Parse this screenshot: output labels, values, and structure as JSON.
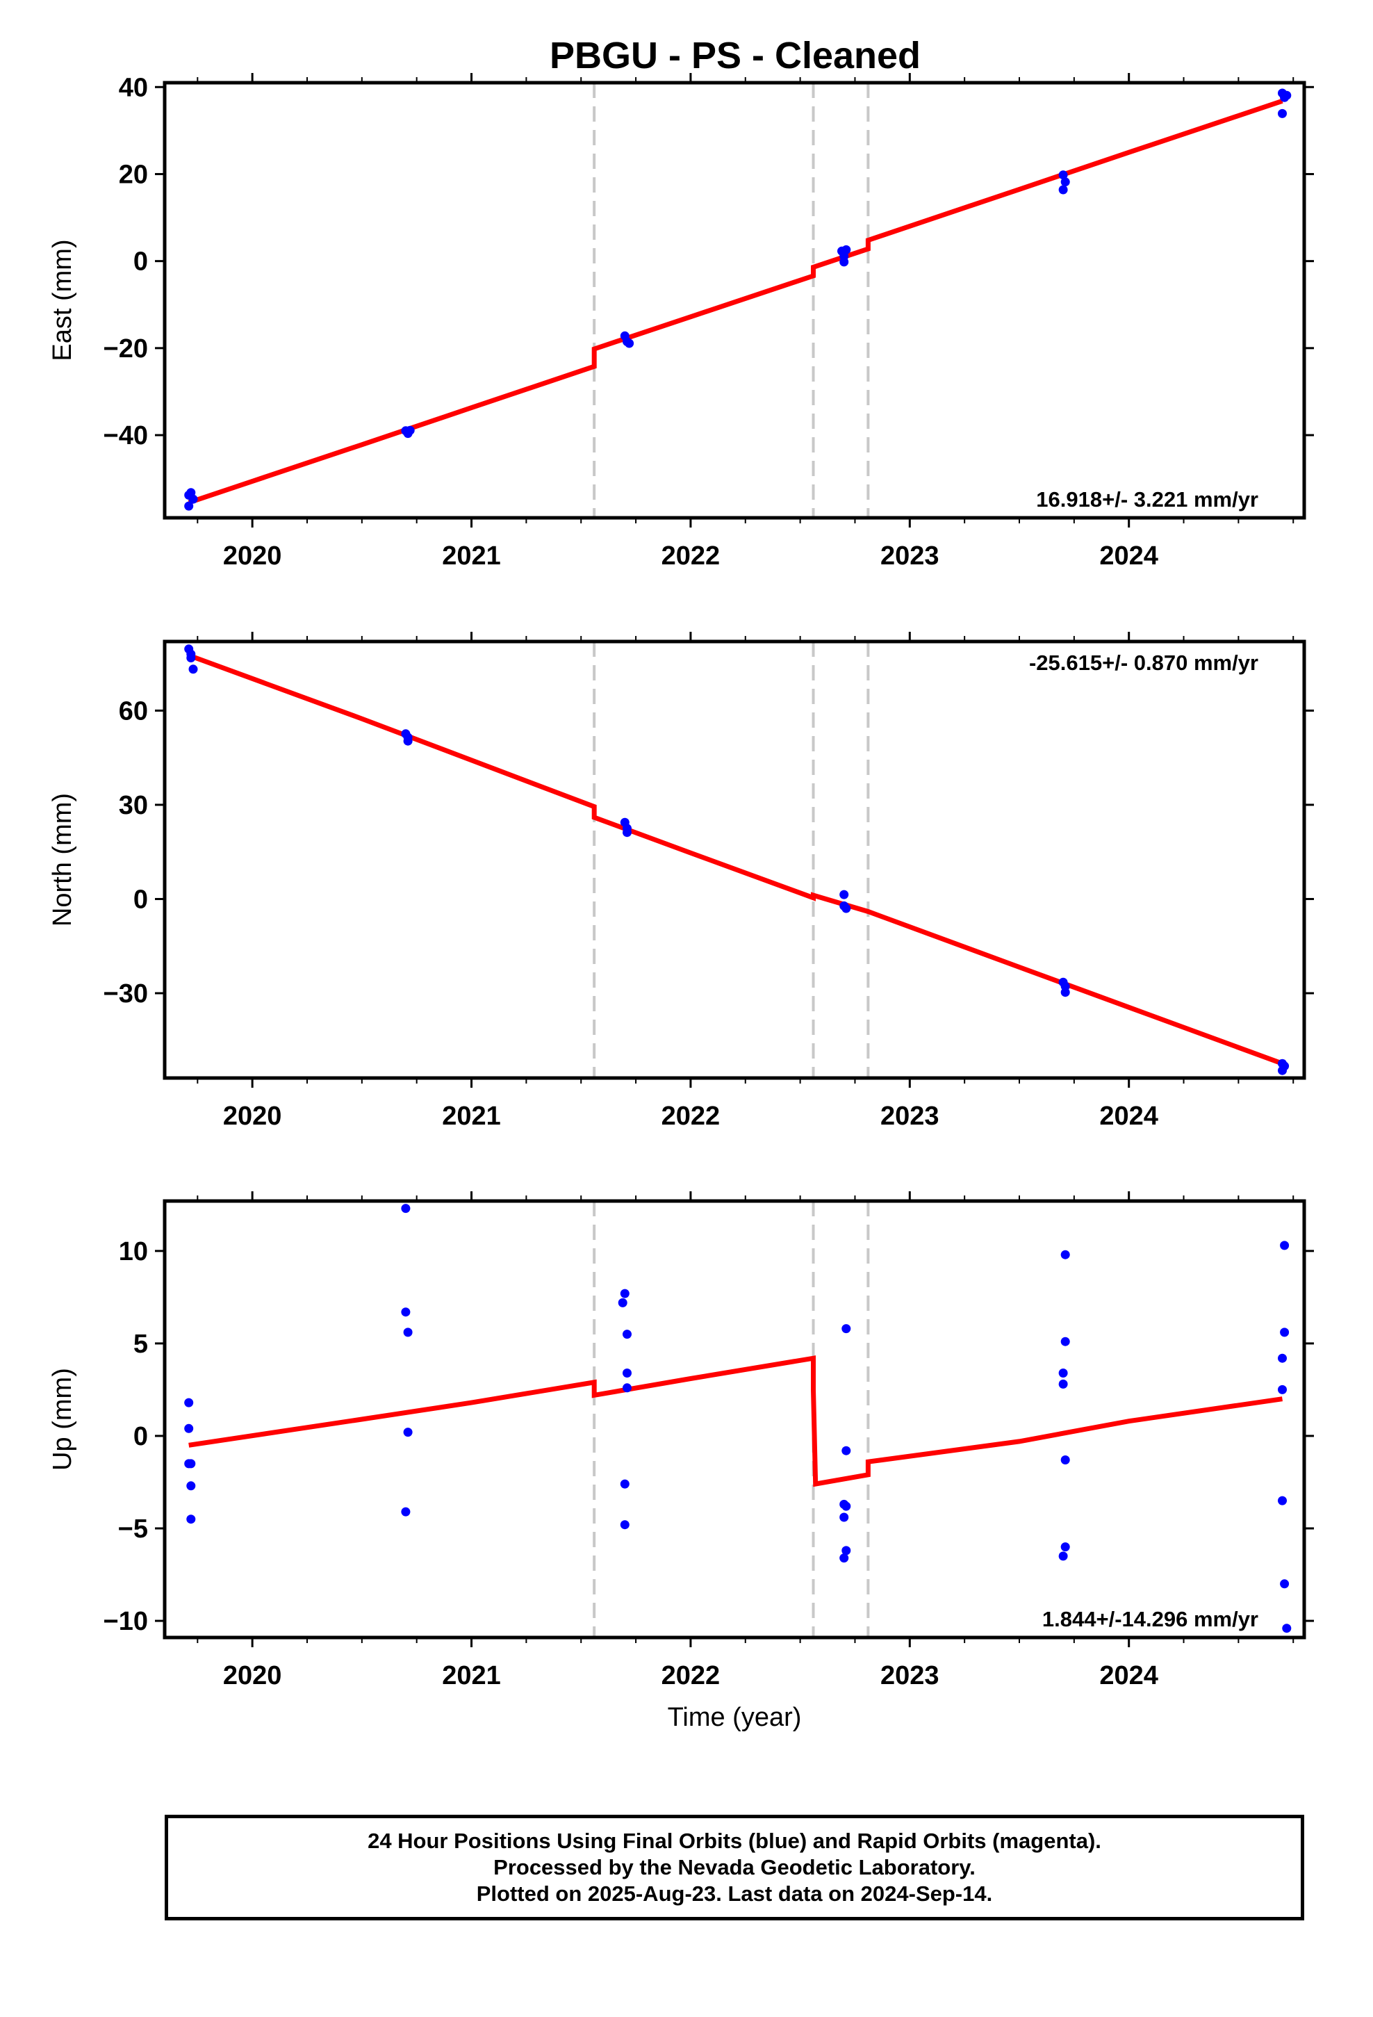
{
  "title": "PBGU  - PS - Cleaned",
  "footer": {
    "line1": "24 Hour Positions Using Final Orbits (blue) and Rapid Orbits (magenta).",
    "line2": "Processed by the Nevada Geodetic Laboratory.",
    "line3": "Plotted on 2025-Aug-23. Last data on 2024-Sep-14."
  },
  "colors": {
    "points": "#0000ff",
    "model": "#ff0000",
    "offsets": "#c8c8c8",
    "frame": "#000000"
  },
  "chart_data": [
    {
      "type": "scatter",
      "ylabel": "East (mm)",
      "rate": "16.918+/- 3.221 mm/yr",
      "rate_position": "bottom-right",
      "xlim": [
        2019.6,
        2024.8
      ],
      "ylim": [
        -59,
        41
      ],
      "x_ticks": [
        2020,
        2021,
        2022,
        2023,
        2024
      ],
      "x_tick_labels": [
        "2020",
        "2021",
        "2022",
        "2023",
        "2024"
      ],
      "y_ticks": [
        -40,
        -20,
        0,
        20,
        40
      ],
      "y_tick_labels": [
        "−40",
        "−20",
        "0",
        "20",
        "40"
      ],
      "offset_lines": [
        2021.56,
        2022.56,
        2022.81
      ],
      "points": [
        [
          2019.71,
          -53.8
        ],
        [
          2019.72,
          -53.2
        ],
        [
          2019.73,
          -54.7
        ],
        [
          2019.71,
          -56.3
        ],
        [
          2020.7,
          -39.0
        ],
        [
          2020.71,
          -39.6
        ],
        [
          2020.72,
          -38.9
        ],
        [
          2021.7,
          -17.2
        ],
        [
          2021.71,
          -18.5
        ],
        [
          2021.72,
          -18.9
        ],
        [
          2022.69,
          2.3
        ],
        [
          2022.7,
          1.1
        ],
        [
          2022.7,
          -0.2
        ],
        [
          2022.71,
          2.6
        ],
        [
          2023.7,
          19.8
        ],
        [
          2023.71,
          18.2
        ],
        [
          2023.7,
          16.4
        ],
        [
          2024.7,
          38.6
        ],
        [
          2024.71,
          37.6
        ],
        [
          2024.72,
          38.1
        ],
        [
          2024.7,
          33.9
        ]
      ],
      "model": [
        [
          2019.71,
          -55.5
        ],
        [
          2020.0,
          -50.6
        ],
        [
          2020.5,
          -42.2
        ],
        [
          2021.0,
          -33.7
        ],
        [
          2021.56,
          -24.2
        ],
        [
          2021.56,
          -20.2
        ],
        [
          2022.0,
          -12.8
        ],
        [
          2022.56,
          -3.4
        ],
        [
          2022.56,
          -1.4
        ],
        [
          2022.81,
          2.8
        ],
        [
          2022.81,
          4.8
        ],
        [
          2023.5,
          16.5
        ],
        [
          2024.0,
          25.0
        ],
        [
          2024.7,
          36.8
        ]
      ]
    },
    {
      "type": "scatter",
      "ylabel": "North (mm)",
      "rate": "-25.615+/- 0.870 mm/yr",
      "rate_position": "top-right",
      "xlim": [
        2019.6,
        2024.8
      ],
      "ylim": [
        -57,
        82
      ],
      "x_ticks": [
        2020,
        2021,
        2022,
        2023,
        2024
      ],
      "x_tick_labels": [
        "2020",
        "2021",
        "2022",
        "2023",
        "2024"
      ],
      "y_ticks": [
        -30,
        0,
        30,
        60
      ],
      "y_tick_labels": [
        "−30",
        "0",
        "30",
        "60"
      ],
      "offset_lines": [
        2021.56,
        2022.56,
        2022.81
      ],
      "points": [
        [
          2019.71,
          79.6
        ],
        [
          2019.72,
          78.0
        ],
        [
          2019.72,
          76.8
        ],
        [
          2019.73,
          73.2
        ],
        [
          2020.7,
          52.6
        ],
        [
          2020.71,
          51.5
        ],
        [
          2020.71,
          50.3
        ],
        [
          2021.7,
          24.4
        ],
        [
          2021.71,
          22.5
        ],
        [
          2021.71,
          21.2
        ],
        [
          2022.7,
          1.4
        ],
        [
          2022.7,
          -2.2
        ],
        [
          2022.71,
          -3.0
        ],
        [
          2023.7,
          -26.5
        ],
        [
          2023.71,
          -27.8
        ],
        [
          2023.71,
          -29.7
        ],
        [
          2024.7,
          -52.4
        ],
        [
          2024.71,
          -53.2
        ],
        [
          2024.7,
          -54.6
        ]
      ],
      "model": [
        [
          2019.71,
          77.6
        ],
        [
          2020.5,
          57.4
        ],
        [
          2021.56,
          29.4
        ],
        [
          2021.56,
          26.0
        ],
        [
          2022.0,
          14.7
        ],
        [
          2022.56,
          0.4
        ],
        [
          2022.56,
          1.2
        ],
        [
          2022.81,
          -4.0
        ],
        [
          2023.5,
          -21.7
        ],
        [
          2024.0,
          -34.5
        ],
        [
          2024.7,
          -52.4
        ]
      ]
    },
    {
      "type": "scatter",
      "ylabel": "Up (mm)",
      "xlabel": "Time (year)",
      "rate": "1.844+/-14.296 mm/yr",
      "rate_position": "bottom-right",
      "xlim": [
        2019.6,
        2024.8
      ],
      "ylim": [
        -10.9,
        12.7
      ],
      "x_ticks": [
        2020,
        2021,
        2022,
        2023,
        2024
      ],
      "x_tick_labels": [
        "2020",
        "2021",
        "2022",
        "2023",
        "2024"
      ],
      "y_ticks": [
        -10,
        -5,
        0,
        5,
        10
      ],
      "y_tick_labels": [
        "−10",
        "−5",
        "0",
        "5",
        "10"
      ],
      "offset_lines": [
        2021.56,
        2022.56,
        2022.81
      ],
      "points": [
        [
          2019.71,
          1.8
        ],
        [
          2019.71,
          0.4
        ],
        [
          2019.71,
          -1.5
        ],
        [
          2019.72,
          -1.5
        ],
        [
          2019.72,
          -2.7
        ],
        [
          2019.72,
          -4.5
        ],
        [
          2020.7,
          12.3
        ],
        [
          2020.7,
          6.7
        ],
        [
          2020.71,
          5.6
        ],
        [
          2020.71,
          0.2
        ],
        [
          2020.7,
          -4.1
        ],
        [
          2021.7,
          7.7
        ],
        [
          2021.69,
          7.2
        ],
        [
          2021.71,
          5.5
        ],
        [
          2021.71,
          3.4
        ],
        [
          2021.71,
          2.6
        ],
        [
          2021.7,
          -2.6
        ],
        [
          2021.7,
          -4.8
        ],
        [
          2022.71,
          5.8
        ],
        [
          2022.71,
          -0.8
        ],
        [
          2022.7,
          -3.7
        ],
        [
          2022.71,
          -3.8
        ],
        [
          2022.7,
          -4.4
        ],
        [
          2022.71,
          -6.2
        ],
        [
          2022.7,
          -6.6
        ],
        [
          2023.71,
          9.8
        ],
        [
          2023.71,
          5.1
        ],
        [
          2023.7,
          3.4
        ],
        [
          2023.7,
          2.8
        ],
        [
          2023.71,
          -1.3
        ],
        [
          2023.71,
          -6.0
        ],
        [
          2023.7,
          -6.5
        ],
        [
          2024.71,
          10.3
        ],
        [
          2024.71,
          5.6
        ],
        [
          2024.7,
          4.2
        ],
        [
          2024.7,
          2.5
        ],
        [
          2024.7,
          -3.5
        ],
        [
          2024.71,
          -8.0
        ],
        [
          2024.72,
          -10.4
        ]
      ],
      "model": [
        [
          2019.71,
          -0.5
        ],
        [
          2020.5,
          0.9
        ],
        [
          2021.0,
          1.8
        ],
        [
          2021.56,
          2.9
        ],
        [
          2021.56,
          2.2
        ],
        [
          2022.0,
          3.1
        ],
        [
          2022.56,
          4.2
        ],
        [
          2022.56,
          2.5
        ],
        [
          2022.57,
          -2.6
        ],
        [
          2022.81,
          -2.1
        ],
        [
          2022.81,
          -1.4
        ],
        [
          2023.5,
          -0.3
        ],
        [
          2024.0,
          0.8
        ],
        [
          2024.7,
          2.0
        ]
      ]
    }
  ]
}
